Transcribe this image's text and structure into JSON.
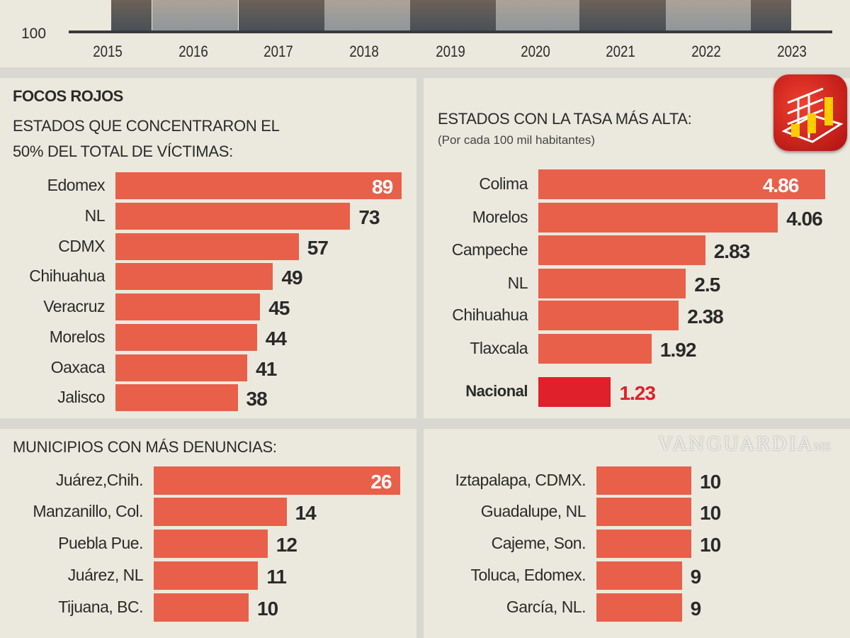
{
  "colors": {
    "bar": "#e8604a",
    "highlight": "#e0202a",
    "dark_col": "#5e5a56",
    "light_col": "#a59e96"
  },
  "watermark": {
    "text": "VANGUARDIA",
    "suffix": "MX"
  },
  "logo": {
    "icon": "3d-bar-chart-icon"
  },
  "chart_data": [
    {
      "type": "bar",
      "title": "",
      "categories": [
        "2015",
        "2016",
        "2017",
        "2018",
        "2019",
        "2020",
        "2021",
        "2022",
        "2023"
      ],
      "y_ticks": [
        "100"
      ]
    },
    {
      "type": "bar",
      "orientation": "horizontal",
      "section": "FOCOS ROJOS",
      "title": "ESTADOS QUE CONCENTRARON EL 50% DEL TOTAL DE VÍCTIMAS:",
      "categories": [
        "Edomex",
        "NL",
        "CDMX",
        "Chihuahua",
        "Veracruz",
        "Morelos",
        "Oaxaca",
        "Jalisco"
      ],
      "values": [
        89,
        73,
        57,
        49,
        45,
        44,
        41,
        38
      ],
      "labels": [
        "89",
        "73",
        "57",
        "49",
        "45",
        "44",
        "41",
        "38"
      ]
    },
    {
      "type": "bar",
      "orientation": "horizontal",
      "title": "ESTADOS CON LA TASA MÁS ALTA:",
      "subtitle": "(Por cada 100 mil habitantes)",
      "categories": [
        "Colima",
        "Morelos",
        "Campeche",
        "NL",
        "Chihuahua",
        "Tlaxcala",
        "Nacional"
      ],
      "values": [
        4.86,
        4.06,
        2.83,
        2.5,
        2.38,
        1.92,
        1.23
      ],
      "labels": [
        "4.86",
        "4.06",
        "2.83",
        "2.5",
        "2.38",
        "1.92",
        "1.23"
      ]
    },
    {
      "type": "bar",
      "orientation": "horizontal",
      "title": "MUNICIPIOS CON MÁS DENUNCIAS:",
      "categories": [
        "Juárez,Chih.",
        "Manzanillo, Col.",
        "Puebla Pue.",
        "Juárez, NL",
        "Tijuana, BC."
      ],
      "values": [
        26,
        14,
        12,
        11,
        10
      ],
      "labels": [
        "26",
        "14",
        "12",
        "11",
        "10"
      ]
    },
    {
      "type": "bar",
      "orientation": "horizontal",
      "title": "",
      "categories": [
        "Iztapalapa, CDMX.",
        "Guadalupe, NL",
        "Cajeme, Son.",
        "Toluca, Edomex.",
        "García, NL."
      ],
      "values": [
        10,
        10,
        10,
        9,
        9
      ],
      "labels": [
        "10",
        "10",
        "10",
        "9",
        "9"
      ]
    }
  ]
}
